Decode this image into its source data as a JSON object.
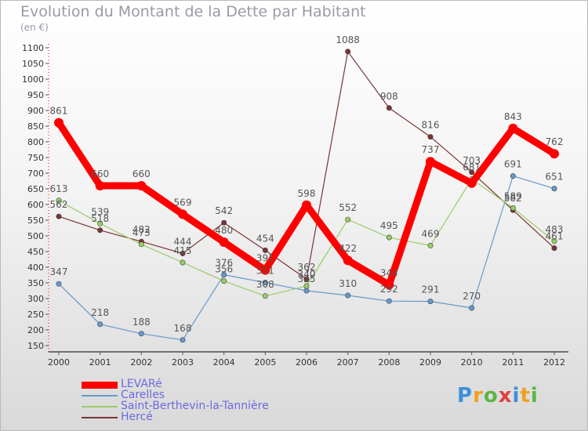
{
  "title": "Evolution du Montant de la Dette par Habitant",
  "subtitle": "(en €)",
  "logo_text": "Proxiti",
  "chart_data": {
    "type": "line",
    "x": [
      "2000",
      "2001",
      "2002",
      "2003",
      "2004",
      "2005",
      "2006",
      "2007",
      "2008",
      "2009",
      "2010",
      "2011",
      "2012"
    ],
    "ylim": [
      150,
      1100
    ],
    "yticks": [
      150,
      200,
      250,
      300,
      350,
      400,
      450,
      500,
      550,
      600,
      650,
      700,
      750,
      800,
      850,
      900,
      950,
      1000,
      1050,
      1100
    ],
    "grid": false,
    "legend_position": "bottom-left",
    "series": [
      {
        "name": "LEVARé",
        "color": "#ff0000",
        "values": [
          861,
          660,
          660,
          569,
          480,
          391,
          598,
          422,
          344,
          737,
          668,
          843,
          762
        ],
        "labels": [
          "861",
          "660",
          "660",
          "569",
          "480",
          "391",
          "598",
          "422",
          "344",
          "737",
          "",
          "843",
          "762"
        ]
      },
      {
        "name": "Carelles",
        "color": "#6699cc",
        "values": [
          347,
          218,
          188,
          168,
          376,
          351,
          325,
          310,
          292,
          291,
          270,
          691,
          651
        ],
        "labels": [
          "347",
          "218",
          "188",
          "168",
          "376",
          "351",
          "325",
          "310",
          "292",
          "291",
          "270",
          "691",
          "651"
        ]
      },
      {
        "name": "Saint-Berthevin-la-Tannière",
        "color": "#99cc66",
        "values": [
          613,
          539,
          473,
          415,
          356,
          308,
          340,
          552,
          495,
          469,
          681,
          589,
          483
        ],
        "labels": [
          "613",
          "539",
          "473",
          "415",
          "356",
          "308",
          "340",
          "552",
          "495",
          "469",
          "681",
          "589",
          "483"
        ]
      },
      {
        "name": "Hercé",
        "color": "#7a3333",
        "values": [
          562,
          518,
          482,
          444,
          542,
          454,
          362,
          1088,
          908,
          816,
          703,
          582,
          461
        ],
        "labels": [
          "562",
          "518",
          "482",
          "444",
          "542",
          "454",
          "362",
          "1088",
          "908",
          "816",
          "703",
          "582",
          "461"
        ]
      }
    ]
  }
}
